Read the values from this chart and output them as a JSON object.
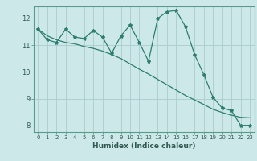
{
  "xlabel": "Humidex (Indice chaleur)",
  "bg_color": "#cce8e8",
  "grid_color": "#aacccc",
  "line_color": "#2e7d6e",
  "xlim": [
    -0.5,
    23.5
  ],
  "ylim": [
    7.75,
    12.45
  ],
  "yticks": [
    8,
    9,
    10,
    11,
    12
  ],
  "xticks": [
    0,
    1,
    2,
    3,
    4,
    5,
    6,
    7,
    8,
    9,
    10,
    11,
    12,
    13,
    14,
    15,
    16,
    17,
    18,
    19,
    20,
    21,
    22,
    23
  ],
  "xtick_labels": [
    "0",
    "1",
    "2",
    "3",
    "4",
    "5",
    "6",
    "7",
    "8",
    "9",
    "10",
    "11",
    "12",
    "13",
    "14",
    "15",
    "16",
    "17",
    "18",
    "19",
    "20",
    "21",
    "22",
    "23"
  ],
  "x_jagged": [
    0,
    1,
    2,
    3,
    4,
    5,
    6,
    7,
    8,
    9,
    10,
    11,
    12,
    13,
    14,
    15,
    16,
    17,
    18,
    19,
    20,
    21,
    22,
    23
  ],
  "y_jagged": [
    11.6,
    11.2,
    11.1,
    11.6,
    11.3,
    11.25,
    11.55,
    11.3,
    10.7,
    11.35,
    11.75,
    11.1,
    10.4,
    12.0,
    12.25,
    12.3,
    11.7,
    10.65,
    9.9,
    9.05,
    8.65,
    8.55,
    8.0,
    8.0
  ],
  "x_trend": [
    0,
    1,
    2,
    3,
    4,
    5,
    6,
    7,
    8,
    9,
    10,
    11,
    12,
    13,
    14,
    15,
    16,
    17,
    18,
    19,
    20,
    21,
    22,
    23
  ],
  "y_trend": [
    11.6,
    11.35,
    11.2,
    11.1,
    11.05,
    10.95,
    10.88,
    10.78,
    10.65,
    10.5,
    10.3,
    10.1,
    9.92,
    9.72,
    9.52,
    9.32,
    9.12,
    8.95,
    8.78,
    8.6,
    8.48,
    8.38,
    8.3,
    8.28
  ]
}
